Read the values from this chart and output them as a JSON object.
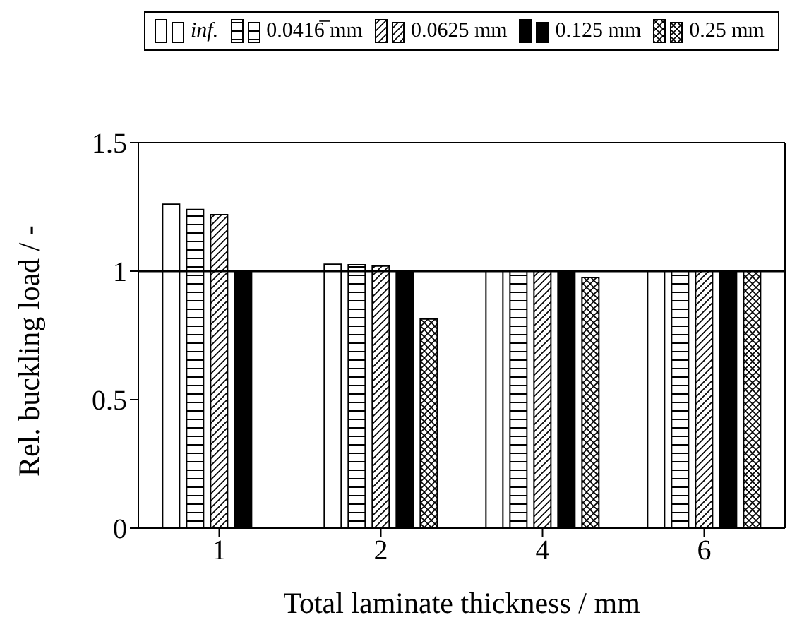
{
  "chart_data": {
    "type": "bar",
    "xlabel": "Total laminate thickness / mm",
    "ylabel": "Rel. buckling load / -",
    "categories": [
      "1",
      "2",
      "4",
      "6"
    ],
    "series": [
      {
        "name": "inf.",
        "color": "#000000",
        "values": [
          1.26,
          1.027,
          1.0,
          1.0
        ]
      },
      {
        "name": "0.0416̅ mm",
        "color": "#000000",
        "values": [
          1.24,
          1.025,
          1.0,
          1.0
        ]
      },
      {
        "name": "0.0625 mm",
        "color": "#000000",
        "values": [
          1.22,
          1.02,
          1.0,
          1.0
        ]
      },
      {
        "name": "0.125 mm",
        "color": "#000000",
        "values": [
          1.0,
          1.0,
          1.0,
          1.0
        ]
      },
      {
        "name": "0.25 mm",
        "color": "#000000",
        "values": [
          null,
          0.814,
          0.975,
          1.0
        ]
      }
    ],
    "ylim": [
      0,
      1.5
    ],
    "yticks": [
      0,
      0.5,
      1,
      1.5
    ],
    "legend": "top",
    "ref_lines": [
      {
        "axis": "y",
        "value": 1,
        "color": "#000000"
      }
    ]
  }
}
